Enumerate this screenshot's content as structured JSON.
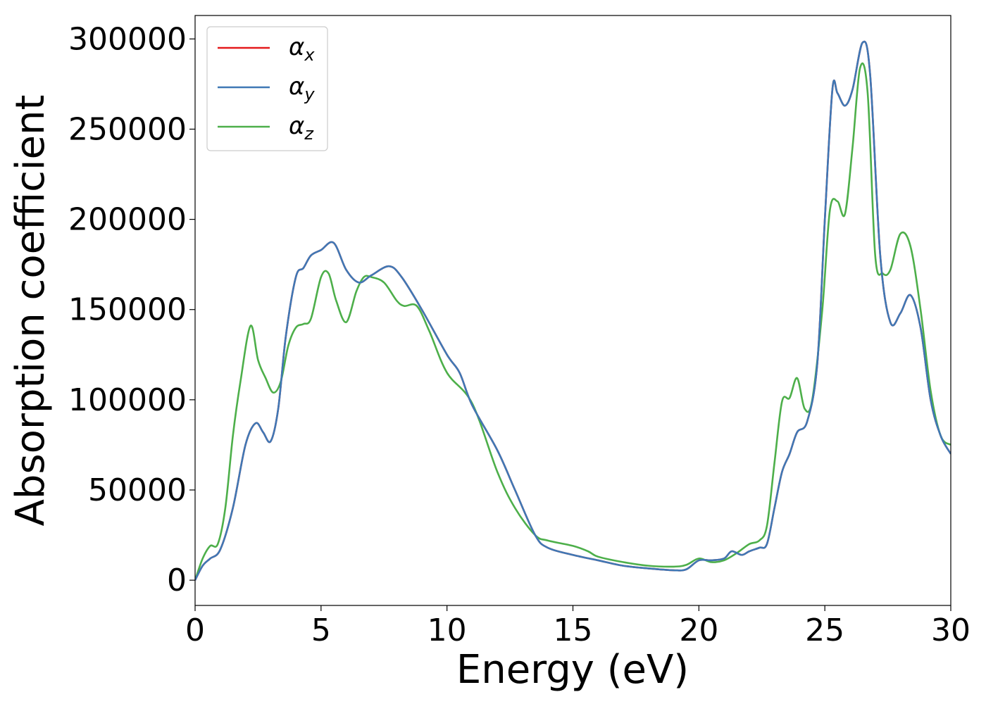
{
  "chart_data": {
    "type": "line",
    "xlabel": "Energy (eV)",
    "ylabel": "Absorption coefficient",
    "xlim": [
      0,
      30
    ],
    "ylim": [
      -14000,
      313000
    ],
    "grid": false,
    "legend_position": "top-left",
    "x_ticks": [
      0,
      5,
      10,
      15,
      20,
      25,
      30
    ],
    "y_ticks": [
      0,
      50000,
      100000,
      150000,
      200000,
      250000,
      300000
    ],
    "x_tick_labels": [
      "0",
      "5",
      "10",
      "15",
      "20",
      "25",
      "30"
    ],
    "y_tick_labels": [
      "0",
      "50000",
      "100000",
      "150000",
      "200000",
      "250000",
      "300000"
    ],
    "series": [
      {
        "name": "α_x",
        "label_main": "α",
        "label_sub": "x",
        "color": "#e41a1c",
        "x": [
          0,
          0.3,
          0.6,
          1.0,
          1.5,
          2.0,
          2.4,
          2.7,
          3.0,
          3.3,
          3.6,
          4.0,
          4.3,
          4.6,
          5.0,
          5.5,
          6.0,
          6.5,
          7.0,
          7.7,
          8.2,
          9.0,
          10.0,
          10.5,
          11.0,
          12.0,
          12.7,
          13.5,
          14.0,
          15.0,
          16.0,
          17.0,
          18.0,
          19.0,
          19.5,
          20.0,
          20.5,
          21.0,
          21.3,
          21.7,
          22.0,
          22.4,
          22.7,
          23.0,
          23.3,
          23.6,
          23.9,
          24.3,
          24.7,
          25.0,
          25.3,
          25.5,
          25.8,
          26.1,
          26.5,
          26.8,
          27.2,
          27.6,
          28.0,
          28.4,
          28.8,
          29.2,
          29.6,
          30.0
        ],
        "values": [
          0,
          8000,
          12000,
          17000,
          40000,
          75000,
          87000,
          82000,
          77000,
          95000,
          135000,
          168000,
          173000,
          180000,
          183000,
          187000,
          172000,
          165000,
          169000,
          174000,
          168000,
          150000,
          125000,
          115000,
          97000,
          72000,
          50000,
          25000,
          18000,
          14000,
          11000,
          8000,
          6500,
          5500,
          6000,
          11000,
          11000,
          12000,
          16000,
          14000,
          16000,
          18000,
          20000,
          40000,
          60000,
          70000,
          82000,
          88000,
          120000,
          200000,
          272000,
          270000,
          263000,
          272000,
          298000,
          280000,
          180000,
          143000,
          148000,
          158000,
          140000,
          100000,
          80000,
          70000
        ]
      },
      {
        "name": "α_y",
        "label_main": "α",
        "label_sub": "y",
        "color": "#3f78b5",
        "x": [
          0,
          0.3,
          0.6,
          1.0,
          1.5,
          2.0,
          2.4,
          2.7,
          3.0,
          3.3,
          3.6,
          4.0,
          4.3,
          4.6,
          5.0,
          5.5,
          6.0,
          6.5,
          7.0,
          7.7,
          8.2,
          9.0,
          10.0,
          10.5,
          11.0,
          12.0,
          12.7,
          13.5,
          14.0,
          15.0,
          16.0,
          17.0,
          18.0,
          19.0,
          19.5,
          20.0,
          20.5,
          21.0,
          21.3,
          21.7,
          22.0,
          22.4,
          22.7,
          23.0,
          23.3,
          23.6,
          23.9,
          24.3,
          24.7,
          25.0,
          25.3,
          25.5,
          25.8,
          26.1,
          26.5,
          26.8,
          27.2,
          27.6,
          28.0,
          28.4,
          28.8,
          29.2,
          29.6,
          30.0
        ],
        "values": [
          0,
          8000,
          12000,
          17000,
          40000,
          75000,
          87000,
          82000,
          77000,
          95000,
          135000,
          168000,
          173000,
          180000,
          183000,
          187000,
          172000,
          165000,
          169000,
          174000,
          168000,
          150000,
          125000,
          115000,
          97000,
          72000,
          50000,
          25000,
          18000,
          14000,
          11000,
          8000,
          6500,
          5500,
          6000,
          11000,
          11000,
          12000,
          16000,
          14000,
          16000,
          18000,
          20000,
          40000,
          60000,
          70000,
          82000,
          88000,
          120000,
          200000,
          272000,
          270000,
          263000,
          272000,
          298000,
          280000,
          180000,
          143000,
          148000,
          158000,
          140000,
          100000,
          80000,
          70000
        ]
      },
      {
        "name": "α_z",
        "label_main": "α",
        "label_sub": "z",
        "color": "#4daf4a",
        "x": [
          0,
          0.3,
          0.6,
          0.9,
          1.2,
          1.5,
          1.8,
          2.2,
          2.5,
          2.8,
          3.1,
          3.4,
          3.7,
          4.0,
          4.3,
          4.6,
          5.0,
          5.3,
          5.6,
          6.0,
          6.4,
          6.7,
          7.0,
          7.5,
          8.0,
          8.3,
          8.8,
          9.3,
          10.0,
          11.0,
          12.0,
          12.7,
          13.5,
          14.0,
          15.0,
          15.6,
          16.0,
          17.0,
          18.0,
          19.0,
          19.5,
          20.0,
          20.5,
          21.0,
          21.5,
          22.0,
          22.4,
          22.7,
          23.0,
          23.3,
          23.6,
          23.9,
          24.2,
          24.5,
          24.9,
          25.2,
          25.5,
          25.8,
          26.1,
          26.4,
          26.7,
          27.0,
          27.3,
          27.6,
          28.0,
          28.4,
          28.8,
          29.2,
          29.6,
          30.0
        ],
        "values": [
          0,
          12000,
          19000,
          20000,
          40000,
          80000,
          110000,
          141000,
          122000,
          112000,
          104000,
          110000,
          130000,
          140000,
          142000,
          145000,
          168000,
          170000,
          155000,
          143000,
          160000,
          168000,
          168000,
          165000,
          155000,
          152000,
          152000,
          138000,
          115000,
          98000,
          60000,
          40000,
          25000,
          22000,
          19000,
          16000,
          13000,
          10000,
          8000,
          7500,
          8500,
          12000,
          10000,
          11000,
          15000,
          20000,
          22000,
          30000,
          65000,
          99000,
          101000,
          112000,
          95000,
          100000,
          150000,
          205000,
          210000,
          203000,
          240000,
          284000,
          270000,
          180000,
          170000,
          172000,
          192000,
          185000,
          150000,
          105000,
          80000,
          75000
        ]
      }
    ]
  }
}
